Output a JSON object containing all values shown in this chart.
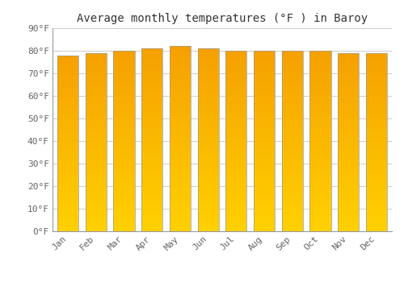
{
  "title": "Average monthly temperatures (°F ) in Baroy",
  "months": [
    "Jan",
    "Feb",
    "Mar",
    "Apr",
    "May",
    "Jun",
    "Jul",
    "Aug",
    "Sep",
    "Oct",
    "Nov",
    "Dec"
  ],
  "values": [
    78,
    79,
    80,
    81,
    82,
    81,
    80,
    80,
    80,
    80,
    79,
    79
  ],
  "ylim": [
    0,
    90
  ],
  "yticks": [
    0,
    10,
    20,
    30,
    40,
    50,
    60,
    70,
    80,
    90
  ],
  "ytick_labels": [
    "0°F",
    "10°F",
    "20°F",
    "30°F",
    "40°F",
    "50°F",
    "60°F",
    "70°F",
    "80°F",
    "90°F"
  ],
  "bar_color_bottom": "#FFD000",
  "bar_color_top": "#F5A000",
  "bar_edge_color": "#999999",
  "background_color": "#FFFFFF",
  "plot_bg_color": "#FFFFFF",
  "grid_color": "#CCCCCC",
  "title_fontsize": 10,
  "tick_fontsize": 8,
  "font_family": "monospace",
  "bar_width": 0.75,
  "n_grad": 80
}
